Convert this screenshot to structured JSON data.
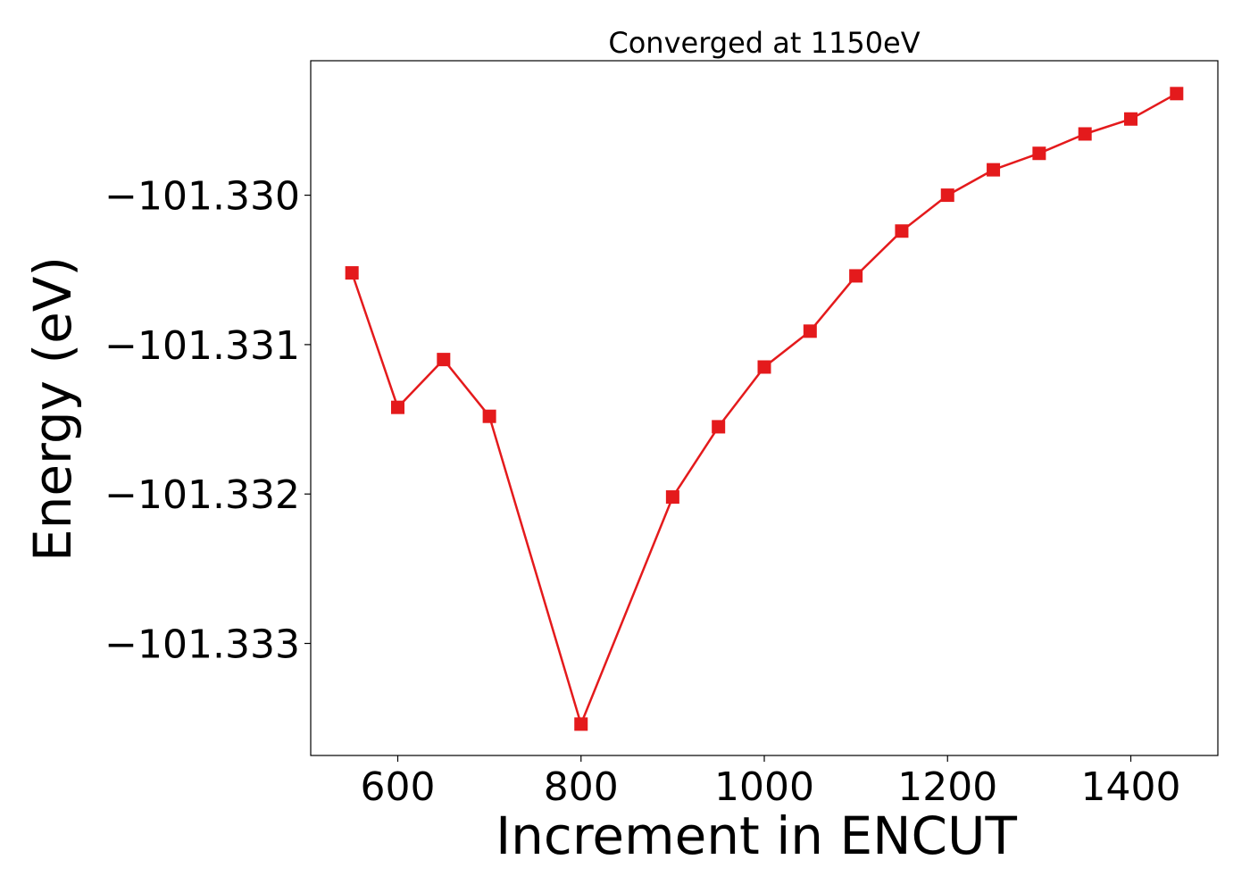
{
  "chart_data": {
    "type": "line",
    "title": "Converged at 1150eV",
    "xlabel": "Increment in ENCUT",
    "ylabel": "Energy (eV)",
    "xlim": [
      505,
      1495
    ],
    "ylim": [
      -101.33375,
      -101.3291
    ],
    "xticks": [
      600,
      800,
      1000,
      1200,
      1400
    ],
    "xtick_labels": [
      "600",
      "800",
      "1000",
      "1200",
      "1400"
    ],
    "yticks": [
      -101.33,
      -101.331,
      -101.332,
      -101.333
    ],
    "ytick_labels": [
      "−101.330",
      "−101.331",
      "−101.332",
      "−101.333"
    ],
    "grid": false,
    "marker": "square",
    "series": [
      {
        "color": "#e41a1c",
        "x": [
          550,
          600,
          650,
          700,
          800,
          900,
          950,
          1000,
          1050,
          1100,
          1150,
          1200,
          1250,
          1300,
          1350,
          1400,
          1450
        ],
        "y": [
          -101.33052,
          -101.33142,
          -101.3311,
          -101.33148,
          -101.33354,
          -101.33202,
          -101.33155,
          -101.33115,
          -101.33091,
          -101.33054,
          -101.33024,
          -101.33,
          -101.32983,
          -101.32972,
          -101.32959,
          -101.32949,
          -101.32932
        ]
      }
    ]
  }
}
